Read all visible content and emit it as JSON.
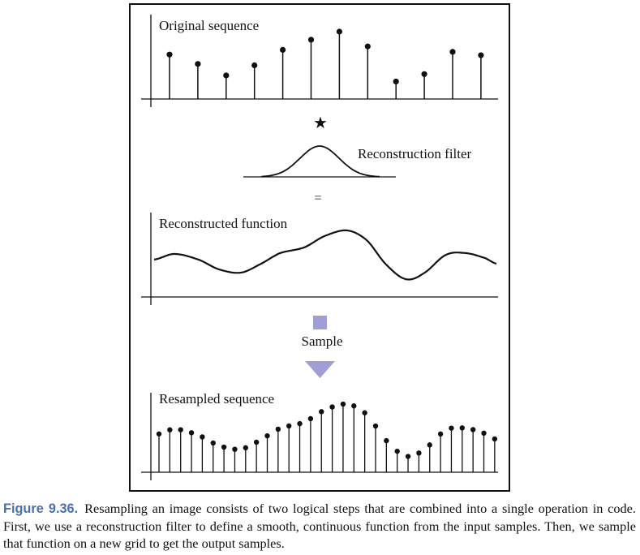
{
  "figure": {
    "panel_original": {
      "label": "Original sequence",
      "samples": [
        0.66,
        0.52,
        0.35,
        0.5,
        0.73,
        0.88,
        1.0,
        0.78,
        0.26,
        0.37,
        0.7,
        0.65
      ]
    },
    "convolve_symbol": "★",
    "panel_filter": {
      "label": "Reconstruction filter"
    },
    "equals_symbol": "=",
    "panel_reconstructed": {
      "label": "Reconstructed function"
    },
    "sample_step": {
      "label": "Sample",
      "arrow_color": "#9f9fd6"
    },
    "panel_resampled": {
      "label": "Resampled sequence"
    }
  },
  "caption": {
    "label": "Figure 9.36.",
    "text": "Resampling an image consists of two logical steps that are combined into a single operation in code. First, we use a reconstruction filter to define a smooth, continuous function from the input samples. Then, we sample that function on a new grid to get the output samples."
  }
}
